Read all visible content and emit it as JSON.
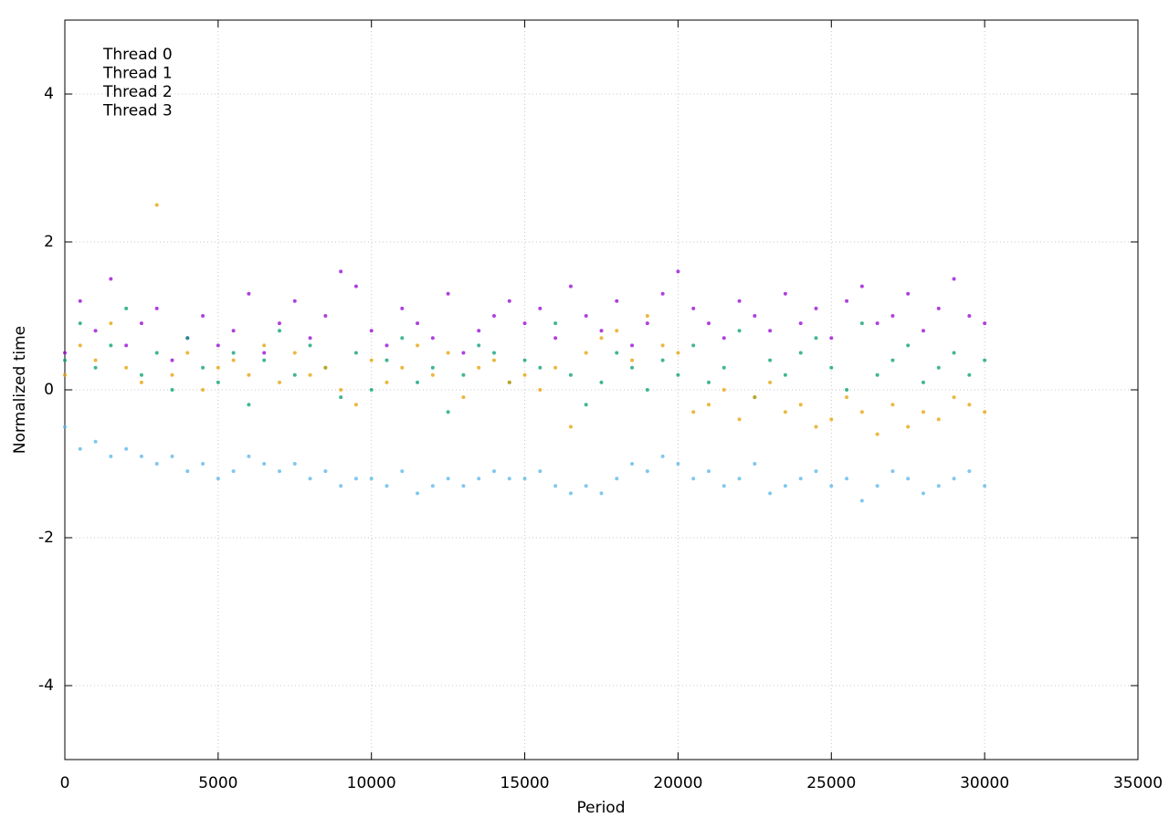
{
  "chart_data": {
    "type": "scatter",
    "x_label": "Period",
    "y_label": "Normalized time",
    "xlim": [
      0,
      35000
    ],
    "xticks": [
      0,
      5000,
      10000,
      15000,
      20000,
      25000,
      30000,
      35000
    ],
    "ylim": [
      -5,
      5
    ],
    "yticks": [
      -4,
      -2,
      0,
      2,
      4
    ],
    "grid": true,
    "legend": "upper-left",
    "x": [
      0,
      500,
      1000,
      1500,
      2000,
      2500,
      3000,
      3500,
      4000,
      4500,
      5000,
      5500,
      6000,
      6500,
      7000,
      7500,
      8000,
      8500,
      9000,
      9500,
      10000,
      10500,
      11000,
      11500,
      12000,
      12500,
      13000,
      13500,
      14000,
      14500,
      15000,
      15500,
      16000,
      16500,
      17000,
      17500,
      18000,
      18500,
      19000,
      19500,
      20000,
      20500,
      21000,
      21500,
      22000,
      22500,
      23000,
      23500,
      24000,
      24500,
      25000,
      25500,
      26000,
      26500,
      27000,
      27500,
      28000,
      28500,
      29000,
      29500,
      30000
    ],
    "series": [
      {
        "name": "Thread 0",
        "color": "#9400d3",
        "values": [
          0.5,
          1.2,
          0.8,
          1.5,
          0.6,
          0.9,
          1.1,
          0.4,
          0.7,
          1.0,
          0.6,
          0.8,
          1.3,
          0.5,
          0.9,
          1.2,
          0.7,
          1.0,
          1.6,
          1.4,
          0.8,
          0.6,
          1.1,
          0.9,
          0.7,
          1.3,
          0.5,
          0.8,
          1.0,
          1.2,
          0.9,
          1.1,
          0.7,
          1.4,
          1.0,
          0.8,
          1.2,
          0.6,
          0.9,
          1.3,
          1.6,
          1.1,
          0.9,
          0.7,
          1.2,
          1.0,
          0.8,
          1.3,
          0.9,
          1.1,
          0.7,
          1.2,
          1.4,
          0.9,
          1.0,
          1.3,
          0.8,
          1.1,
          1.5,
          1.0,
          0.9
        ]
      },
      {
        "name": "Thread 1",
        "color": "#009e73",
        "values": [
          0.4,
          0.9,
          0.3,
          0.6,
          1.1,
          0.2,
          0.5,
          0.0,
          0.7,
          0.3,
          0.1,
          0.5,
          -0.2,
          0.4,
          0.8,
          0.2,
          0.6,
          0.3,
          -0.1,
          0.5,
          0.0,
          0.4,
          0.7,
          0.1,
          0.3,
          -0.3,
          0.2,
          0.6,
          0.5,
          0.1,
          0.4,
          0.3,
          0.9,
          0.2,
          -0.2,
          0.1,
          0.5,
          0.3,
          0.0,
          0.4,
          0.2,
          0.6,
          0.1,
          0.3,
          0.8,
          -0.1,
          0.4,
          0.2,
          0.5,
          0.7,
          0.3,
          0.0,
          0.9,
          0.2,
          0.4,
          0.6,
          0.1,
          0.3,
          0.5,
          0.2,
          0.4
        ]
      },
      {
        "name": "Thread 2",
        "color": "#56b4e9",
        "values": [
          -0.5,
          -0.8,
          -0.7,
          -0.9,
          -0.8,
          -0.9,
          -1.0,
          -0.9,
          -1.1,
          -1.0,
          -1.2,
          -1.1,
          -0.9,
          -1.0,
          -1.1,
          -1.0,
          -1.2,
          -1.1,
          -1.3,
          -1.2,
          -1.2,
          -1.3,
          -1.1,
          -1.4,
          -1.3,
          -1.2,
          -1.3,
          -1.2,
          -1.1,
          -1.2,
          -1.2,
          -1.1,
          -1.3,
          -1.4,
          -1.3,
          -1.4,
          -1.2,
          -1.0,
          -1.1,
          -0.9,
          -1.0,
          -1.2,
          -1.1,
          -1.3,
          -1.2,
          -1.0,
          -1.4,
          -1.3,
          -1.2,
          -1.1,
          -1.3,
          -1.2,
          -1.5,
          -1.3,
          -1.1,
          -1.2,
          -1.4,
          -1.3,
          -1.2,
          -1.1,
          -1.3
        ]
      },
      {
        "name": "Thread 3",
        "color": "#e69f00",
        "values": [
          0.2,
          0.6,
          0.4,
          0.9,
          0.3,
          0.1,
          2.5,
          0.2,
          0.5,
          0.0,
          0.3,
          0.4,
          0.2,
          0.6,
          0.1,
          0.5,
          0.2,
          0.3,
          0.0,
          -0.2,
          0.4,
          0.1,
          0.3,
          0.6,
          0.2,
          0.5,
          -0.1,
          0.3,
          0.4,
          0.1,
          0.2,
          0.0,
          0.3,
          -0.5,
          0.5,
          0.7,
          0.8,
          0.4,
          1.0,
          0.6,
          0.5,
          -0.3,
          -0.2,
          0.0,
          -0.4,
          -0.1,
          0.1,
          -0.3,
          -0.2,
          -0.5,
          -0.4,
          -0.1,
          -0.3,
          -0.6,
          -0.2,
          -0.5,
          -0.3,
          -0.4,
          -0.1,
          -0.2,
          -0.3
        ]
      }
    ]
  }
}
